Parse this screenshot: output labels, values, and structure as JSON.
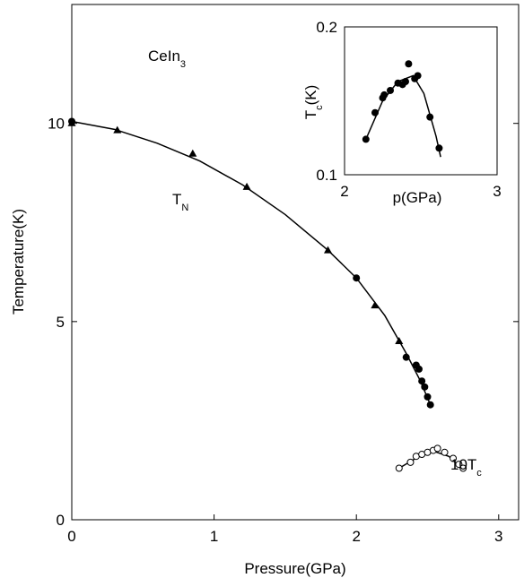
{
  "chart_data": [
    {
      "type": "scatter",
      "x_label": "Pressure(GPa)",
      "y_label": "Temperature(K)",
      "xlim": [
        0,
        3.14
      ],
      "ylim": [
        0,
        13
      ],
      "xticks": [
        0,
        1,
        2,
        3
      ],
      "yticks": [
        0,
        5,
        10
      ],
      "annotations": [
        {
          "text": "CeIn",
          "sub": "3"
        },
        {
          "text": "T",
          "sub": "N"
        },
        {
          "text": "10T",
          "sub": "c"
        }
      ],
      "series": [
        {
          "marker": "line",
          "color": "#000000",
          "x": [
            0,
            0.3,
            0.6,
            0.9,
            1.2,
            1.5,
            1.8,
            2.0,
            2.2,
            2.35,
            2.45,
            2.52
          ],
          "values": [
            10.05,
            9.85,
            9.5,
            9.05,
            8.45,
            7.7,
            6.8,
            6.1,
            5.15,
            4.2,
            3.5,
            2.9
          ]
        },
        {
          "marker": "triangle",
          "color": "#000000",
          "x": [
            0,
            0.32,
            0.85,
            1.23,
            1.8,
            2.13,
            2.3
          ],
          "values": [
            10.0,
            9.82,
            9.23,
            8.39,
            6.79,
            5.4,
            4.5
          ]
        },
        {
          "marker": "circle",
          "color": "#000000",
          "x": [
            0,
            2.0,
            2.35,
            2.42,
            2.44,
            2.46,
            2.48,
            2.5,
            2.52
          ],
          "values": [
            10.05,
            6.1,
            4.1,
            3.9,
            3.8,
            3.5,
            3.35,
            3.1,
            2.9
          ]
        },
        {
          "marker": "line",
          "color": "#000000",
          "x": [
            2.3,
            2.45,
            2.55,
            2.65,
            2.75
          ],
          "values": [
            1.3,
            1.62,
            1.72,
            1.6,
            1.25
          ]
        },
        {
          "marker": "open-circle",
          "color": "#000000",
          "x": [
            2.3,
            2.38,
            2.42,
            2.46,
            2.5,
            2.54,
            2.57,
            2.62,
            2.68,
            2.72,
            2.75
          ],
          "values": [
            1.3,
            1.45,
            1.6,
            1.65,
            1.7,
            1.75,
            1.8,
            1.7,
            1.55,
            1.4,
            1.3
          ]
        }
      ]
    },
    {
      "type": "scatter",
      "x_label": "p(GPa)",
      "y_label": {
        "text": "T",
        "sub": "c",
        "after": "(K)"
      },
      "xlim": [
        2,
        3
      ],
      "ylim": [
        0.1,
        0.2
      ],
      "xticks": [
        2,
        3
      ],
      "yticks": [
        0.1,
        0.2
      ],
      "series": [
        {
          "marker": "line",
          "color": "#000000",
          "x": [
            2.14,
            2.25,
            2.35,
            2.45,
            2.52,
            2.6,
            2.63
          ],
          "values": [
            0.124,
            0.15,
            0.163,
            0.167,
            0.155,
            0.126,
            0.112
          ]
        },
        {
          "marker": "circle",
          "color": "#000000",
          "x": [
            2.14,
            2.2,
            2.25,
            2.26,
            2.3,
            2.35,
            2.38,
            2.4,
            2.42,
            2.46,
            2.48,
            2.56,
            2.62
          ],
          "values": [
            0.124,
            0.142,
            0.152,
            0.154,
            0.157,
            0.162,
            0.161,
            0.163,
            0.175,
            0.165,
            0.167,
            0.139,
            0.118
          ]
        }
      ]
    }
  ]
}
